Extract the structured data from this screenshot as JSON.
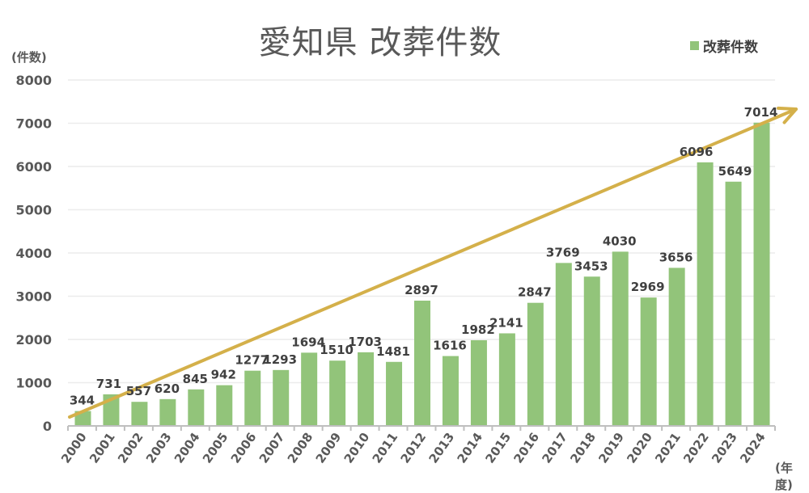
{
  "chart": {
    "title": "愛知県 改葬件数",
    "y_unit_label": "(件数)",
    "x_unit_label": "(年度)",
    "legend_label": "改葬件数",
    "bar_color": "#92c47a",
    "arrow_color": "#d4b04a",
    "grid_color": "#ececec",
    "axis_color": "#bfbfbf"
  },
  "chart_data": {
    "type": "bar",
    "title": "愛知県 改葬件数",
    "xlabel": "(年度)",
    "ylabel": "(件数)",
    "ylim": [
      0,
      8000
    ],
    "yticks": [
      0,
      1000,
      2000,
      3000,
      4000,
      5000,
      6000,
      7000,
      8000
    ],
    "grid": true,
    "legend_position": "top-right",
    "categories": [
      "2000",
      "2001",
      "2002",
      "2003",
      "2004",
      "2005",
      "2006",
      "2007",
      "2008",
      "2009",
      "2010",
      "2011",
      "2012",
      "2013",
      "2014",
      "2015",
      "2016",
      "2017",
      "2018",
      "2019",
      "2020",
      "2021",
      "2022",
      "2023",
      "2024"
    ],
    "series": [
      {
        "name": "改葬件数",
        "values": [
          344,
          731,
          557,
          620,
          845,
          942,
          1277,
          1293,
          1694,
          1510,
          1703,
          1481,
          2897,
          1616,
          1982,
          2141,
          2847,
          3769,
          3453,
          4030,
          2969,
          3656,
          6096,
          5649,
          7014
        ]
      }
    ],
    "annotations": [
      {
        "type": "trend-arrow",
        "description": "upward trend arrow from 2000 to beyond 2024"
      }
    ]
  }
}
